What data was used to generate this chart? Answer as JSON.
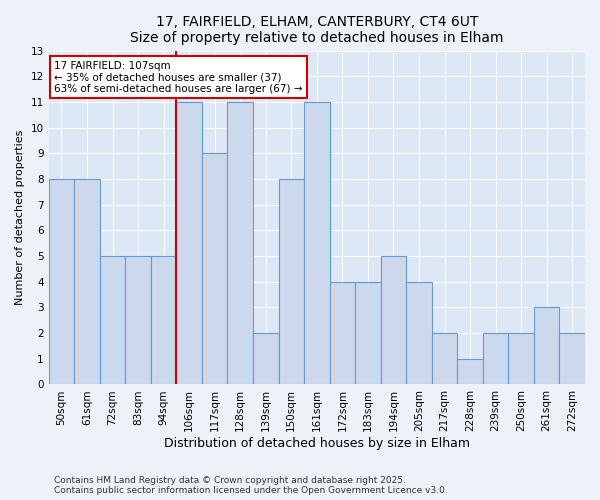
{
  "title1": "17, FAIRFIELD, ELHAM, CANTERBURY, CT4 6UT",
  "title2": "Size of property relative to detached houses in Elham",
  "xlabel": "Distribution of detached houses by size in Elham",
  "ylabel": "Number of detached properties",
  "categories": [
    "50sqm",
    "61sqm",
    "72sqm",
    "83sqm",
    "94sqm",
    "106sqm",
    "117sqm",
    "128sqm",
    "139sqm",
    "150sqm",
    "161sqm",
    "172sqm",
    "183sqm",
    "194sqm",
    "205sqm",
    "217sqm",
    "228sqm",
    "239sqm",
    "250sqm",
    "261sqm",
    "272sqm"
  ],
  "values": [
    8,
    8,
    5,
    5,
    5,
    11,
    9,
    11,
    2,
    8,
    11,
    4,
    4,
    5,
    4,
    2,
    1,
    2,
    2,
    3,
    2
  ],
  "bar_color": "#ccd9ec",
  "bar_edge_color": "#6699cc",
  "highlight_index": 5,
  "red_line_color": "#cc0000",
  "annotation_box_color": "#cc0000",
  "annotation_line1": "17 FAIRFIELD: 107sqm",
  "annotation_line2": "← 35% of detached houses are smaller (37)",
  "annotation_line3": "63% of semi-detached houses are larger (67) →",
  "ylim": [
    0,
    13
  ],
  "yticks": [
    0,
    1,
    2,
    3,
    4,
    5,
    6,
    7,
    8,
    9,
    10,
    11,
    12,
    13
  ],
  "footer": "Contains HM Land Registry data © Crown copyright and database right 2025.\nContains public sector information licensed under the Open Government Licence v3.0.",
  "bg_color": "#edf2f9",
  "plot_bg_color": "#dce8f5",
  "grid_color": "#ffffff",
  "title_fontsize": 10,
  "xlabel_fontsize": 9,
  "ylabel_fontsize": 8,
  "tick_fontsize": 7.5,
  "footer_fontsize": 6.5,
  "ann_fontsize": 7.5
}
